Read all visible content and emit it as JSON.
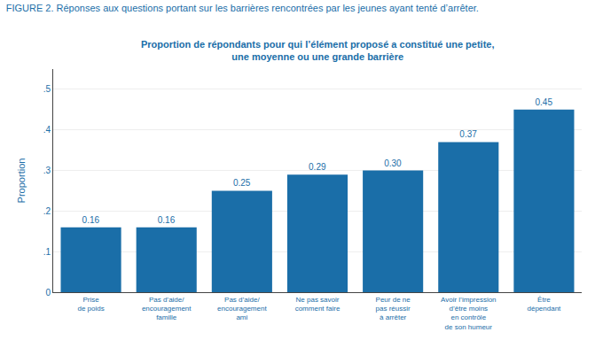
{
  "chart_data": {
    "type": "bar",
    "title": "FIGURE 2. Réponses aux questions portant sur les barrières rencontrées par les jeunes ayant tenté d’arrêter.",
    "subtitle": "Proportion de répondants pour qui l’élément proposé a constitué une petite,\nune moyenne ou une grande barrière",
    "categories": [
      "Prise\nde poids",
      "Pas d’aide/\nencouragement\nfamille",
      "Pas d’aide/\nencouragement\nami",
      "Ne pas savoir\ncomment faire",
      "Peur de ne\npas réussir\nà arrêter",
      "Avoir l’impression\nd’être moins\nen contrôle\nde son humeur",
      "Être\ndépendant"
    ],
    "values": [
      0.16,
      0.16,
      0.25,
      0.29,
      0.3,
      0.37,
      0.45
    ],
    "value_labels": [
      "0.16",
      "0.16",
      "0.25",
      "0.29",
      "0.30",
      "0.37",
      "0.45"
    ],
    "data_labels": true,
    "color": "#1a6ea8",
    "ylabel": "Proportion",
    "ylim": [
      0,
      0.55
    ],
    "yticks": [
      0,
      {
        "value": 0.1,
        "label": ".1"
      },
      {
        "value": 0.2,
        "label": ".2"
      },
      {
        "value": 0.3,
        "label": ".3"
      },
      {
        "value": 0.4,
        "label": ".4"
      },
      {
        "value": 0.5,
        "label": ".5"
      }
    ],
    "grid": true
  }
}
